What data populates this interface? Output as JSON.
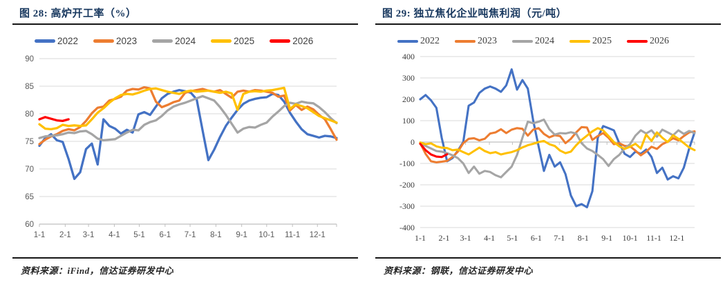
{
  "figures": [
    {
      "title": "图 28: 高炉开工率（%）",
      "source": "资料来源：iFind，信达证券研发中心",
      "chart_data": {
        "type": "line",
        "title": "高炉开工率（%）",
        "xlabel": "",
        "ylabel": "",
        "x_unit": "week-of-year",
        "x_tick_labels": [
          "1-1",
          "2-1",
          "3-1",
          "4-1",
          "5-1",
          "6-1",
          "7-1",
          "8-1",
          "9-1",
          "10-1",
          "11-1",
          "12-1"
        ],
        "ylim": [
          60,
          90
        ],
        "ystep": 5,
        "y_tick_labels": [
          "60",
          "65",
          "70",
          "75",
          "80",
          "85",
          "90"
        ],
        "grid": "horizontal",
        "legend_position": "top",
        "series": [
          {
            "name": "2022",
            "color": "#4472C4",
            "values": [
              74.2,
              75.6,
              76.3,
              75.2,
              74.9,
              71.8,
              68.2,
              69.4,
              73.6,
              74.6,
              70.8,
              79.0,
              77.8,
              77.3,
              76.4,
              77.1,
              76.6,
              79.9,
              80.3,
              79.8,
              81.3,
              82.8,
              83.6,
              84.0,
              84.3,
              84.1,
              83.8,
              82.6,
              77.0,
              71.6,
              73.5,
              75.8,
              77.8,
              79.3,
              80.7,
              81.8,
              82.4,
              82.7,
              82.9,
              83.0,
              83.6,
              83.4,
              82.2,
              80.2,
              78.6,
              77.2,
              76.3,
              76.0,
              75.7,
              76.0,
              75.9,
              75.6
            ]
          },
          {
            "name": "2023",
            "color": "#ED7D31",
            "values": [
              74.5,
              75.3,
              75.9,
              76.3,
              76.9,
              77.2,
              77.0,
              77.6,
              78.7,
              80.1,
              81.1,
              81.3,
              82.4,
              82.7,
              83.1,
              84.2,
              84.5,
              84.4,
              84.8,
              84.6,
              82.2,
              81.2,
              81.6,
              82.1,
              82.4,
              83.8,
              84.1,
              84.3,
              84.5,
              84.2,
              84.0,
              84.3,
              83.6,
              82.9,
              84.0,
              84.2,
              84.0,
              84.3,
              84.2,
              84.0,
              83.8,
              83.1,
              83.3,
              80.6,
              81.6,
              80.7,
              81.3,
              80.8,
              79.8,
              79.0,
              77.2,
              75.3
            ]
          },
          {
            "name": "2024",
            "color": "#A5A5A5",
            "values": [
              75.6,
              75.9,
              76.0,
              76.1,
              76.3,
              76.6,
              76.5,
              76.8,
              76.9,
              76.3,
              75.5,
              75.2,
              75.3,
              75.4,
              76.0,
              76.6,
              77.1,
              77.0,
              78.0,
              78.5,
              78.8,
              79.6,
              80.6,
              81.3,
              81.7,
              82.0,
              82.4,
              82.8,
              83.2,
              82.8,
              82.4,
              81.2,
              79.8,
              78.2,
              76.6,
              77.3,
              77.6,
              77.5,
              78.0,
              78.4,
              79.5,
              80.4,
              81.4,
              82.0,
              81.8,
              82.2,
              82.0,
              81.9,
              81.2,
              80.3,
              79.2,
              78.3
            ]
          },
          {
            "name": "2025",
            "color": "#FFC000",
            "values": [
              78.1,
              77.3,
              77.2,
              77.4,
              78.0,
              77.8,
              77.9,
              77.8,
              77.9,
              79.0,
              80.2,
              81.0,
              82.0,
              82.8,
              83.4,
              83.6,
              83.5,
              83.8,
              84.2,
              84.5,
              84.6,
              84.3,
              84.0,
              83.8,
              83.6,
              84.0,
              84.2,
              84.0,
              84.1,
              84.2,
              84.0,
              83.8,
              84.0,
              83.7,
              80.7,
              83.6,
              84.0,
              84.1,
              84.0,
              84.2,
              84.3,
              84.5,
              84.7,
              80.9,
              81.7,
              81.4,
              81.0,
              80.3,
              79.6,
              79.2,
              78.8,
              78.4
            ]
          },
          {
            "name": "2026",
            "color": "#FF0000",
            "values": [
              79.0,
              79.4,
              79.1,
              78.8,
              78.7,
              79.0
            ]
          }
        ]
      }
    },
    {
      "title": "图 29: 独立焦化企业吨焦利润（元/吨）",
      "source": "资料来源：钢联，信达证券研发中心",
      "chart_data": {
        "type": "line",
        "title": "独立焦化企业吨焦利润（元/吨）",
        "xlabel": "",
        "ylabel": "",
        "x_unit": "week-of-year",
        "x_tick_labels": [
          "1-1",
          "2-1",
          "3-1",
          "4-1",
          "5-1",
          "6-1",
          "7-1",
          "8-1",
          "9-1",
          "10-1",
          "11-1",
          "12-1"
        ],
        "ylim": [
          -400,
          400
        ],
        "ystep": 100,
        "y_tick_labels": [
          "-400",
          "-300",
          "-200",
          "-100",
          "0",
          "100",
          "200",
          "300",
          "400"
        ],
        "grid": "horizontal",
        "legend_position": "top",
        "series": [
          {
            "name": "2022",
            "color": "#4472C4",
            "values": [
              200,
              220,
              195,
              160,
              20,
              -90,
              -75,
              -40,
              0,
              170,
              185,
              230,
              250,
              260,
              250,
              235,
              265,
              340,
              245,
              290,
              250,
              100,
              -20,
              -135,
              -60,
              -115,
              -95,
              -150,
              -250,
              -300,
              -290,
              -305,
              -230,
              20,
              75,
              65,
              55,
              -5,
              -55,
              -70,
              -45,
              -55,
              -35,
              -70,
              -145,
              -120,
              -175,
              -160,
              -170,
              -120,
              -30,
              45
            ]
          },
          {
            "name": "2023",
            "color": "#ED7D31",
            "values": [
              -5,
              -55,
              -90,
              -95,
              -92,
              -88,
              -70,
              -45,
              -5,
              15,
              18,
              8,
              15,
              40,
              45,
              60,
              42,
              58,
              65,
              62,
              30,
              58,
              65,
              38,
              22,
              32,
              28,
              -5,
              15,
              45,
              70,
              68,
              10,
              28,
              42,
              20,
              -10,
              -5,
              -18,
              -20,
              -40,
              -62,
              -45,
              -22,
              -32,
              -10,
              2,
              18,
              8,
              28,
              45,
              50
            ]
          },
          {
            "name": "2024",
            "color": "#A5A5A5",
            "values": [
              -5,
              -18,
              -30,
              -42,
              -45,
              -52,
              -62,
              -75,
              -100,
              -145,
              -115,
              -148,
              -135,
              -140,
              -155,
              -165,
              -140,
              -115,
              -60,
              20,
              95,
              88,
              95,
              105,
              60,
              35,
              42,
              40,
              46,
              40,
              -5,
              -30,
              -42,
              -60,
              -80,
              -112,
              -80,
              -60,
              -30,
              -10,
              30,
              55,
              40,
              55,
              25,
              58,
              45,
              32,
              55,
              38,
              52,
              42
            ]
          },
          {
            "name": "2025",
            "color": "#FFC000",
            "values": [
              -2,
              -10,
              -6,
              -20,
              -26,
              -28,
              -38,
              -35,
              -47,
              -58,
              -42,
              -26,
              -42,
              -52,
              -47,
              -58,
              -52,
              -47,
              -38,
              -25,
              -15,
              -8,
              0,
              5,
              -10,
              -18,
              -40,
              -52,
              -45,
              -15,
              10,
              30,
              50,
              65,
              55,
              28,
              0,
              -20,
              -32,
              -22,
              -8,
              -30,
              35,
              5,
              45,
              20,
              0,
              32,
              15,
              -5,
              -25,
              -38
            ]
          },
          {
            "name": "2026",
            "color": "#FF0000",
            "values": [
              -8,
              -38,
              -58,
              -68,
              -70,
              -57
            ]
          }
        ]
      }
    }
  ]
}
